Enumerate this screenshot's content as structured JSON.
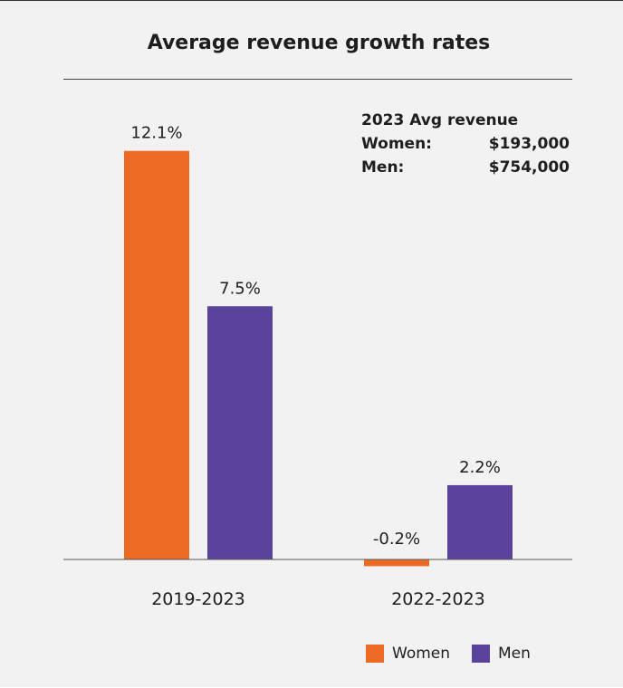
{
  "chart_data": {
    "type": "bar",
    "title": "Average revenue growth rates",
    "categories": [
      "2019-2023",
      "2022-2023"
    ],
    "series": [
      {
        "name": "Women",
        "values": [
          12.1,
          -0.2
        ],
        "labels": [
          "12.1%",
          "-0.2%"
        ],
        "color": "#ec6a23"
      },
      {
        "name": "Men",
        "values": [
          7.5,
          2.2
        ],
        "labels": [
          "7.5%",
          "2.2%"
        ],
        "color": "#5a449b"
      }
    ],
    "ylim": [
      -0.5,
      12.5
    ],
    "grid": false,
    "legend": "bottom-right",
    "annotation": {
      "heading": "2023 Avg revenue",
      "rows": [
        {
          "label": "Women:",
          "value": "$193,000"
        },
        {
          "label": "Men:",
          "value": "$754,000"
        }
      ]
    }
  }
}
